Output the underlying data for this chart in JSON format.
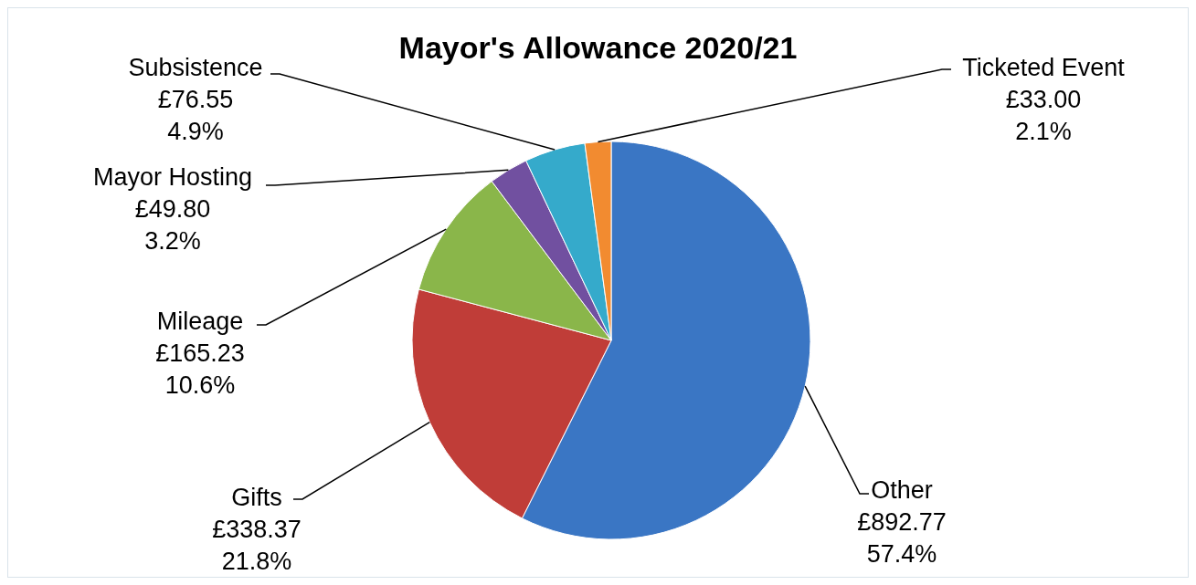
{
  "chart_data": {
    "type": "pie",
    "title": "Mayor's Allowance 2020/21",
    "categories": [
      "Other",
      "Gifts",
      "Mileage",
      "Mayor Hosting",
      "Subsistence",
      "Ticketed Event"
    ],
    "values": [
      892.77,
      338.37,
      165.23,
      49.8,
      76.55,
      33.0
    ],
    "colors": [
      "#3a76c4",
      "#c03d38",
      "#8ab64a",
      "#7150a0",
      "#35aacb",
      "#f28b30"
    ],
    "value_labels": [
      "£892.77\n57.4%",
      "£338.37\n21.8%",
      "£165.23\n10.6%",
      "£49.80\n3.2%",
      "£76.55\n4.9%",
      "£33.00\n2.1%"
    ],
    "legend": false
  }
}
